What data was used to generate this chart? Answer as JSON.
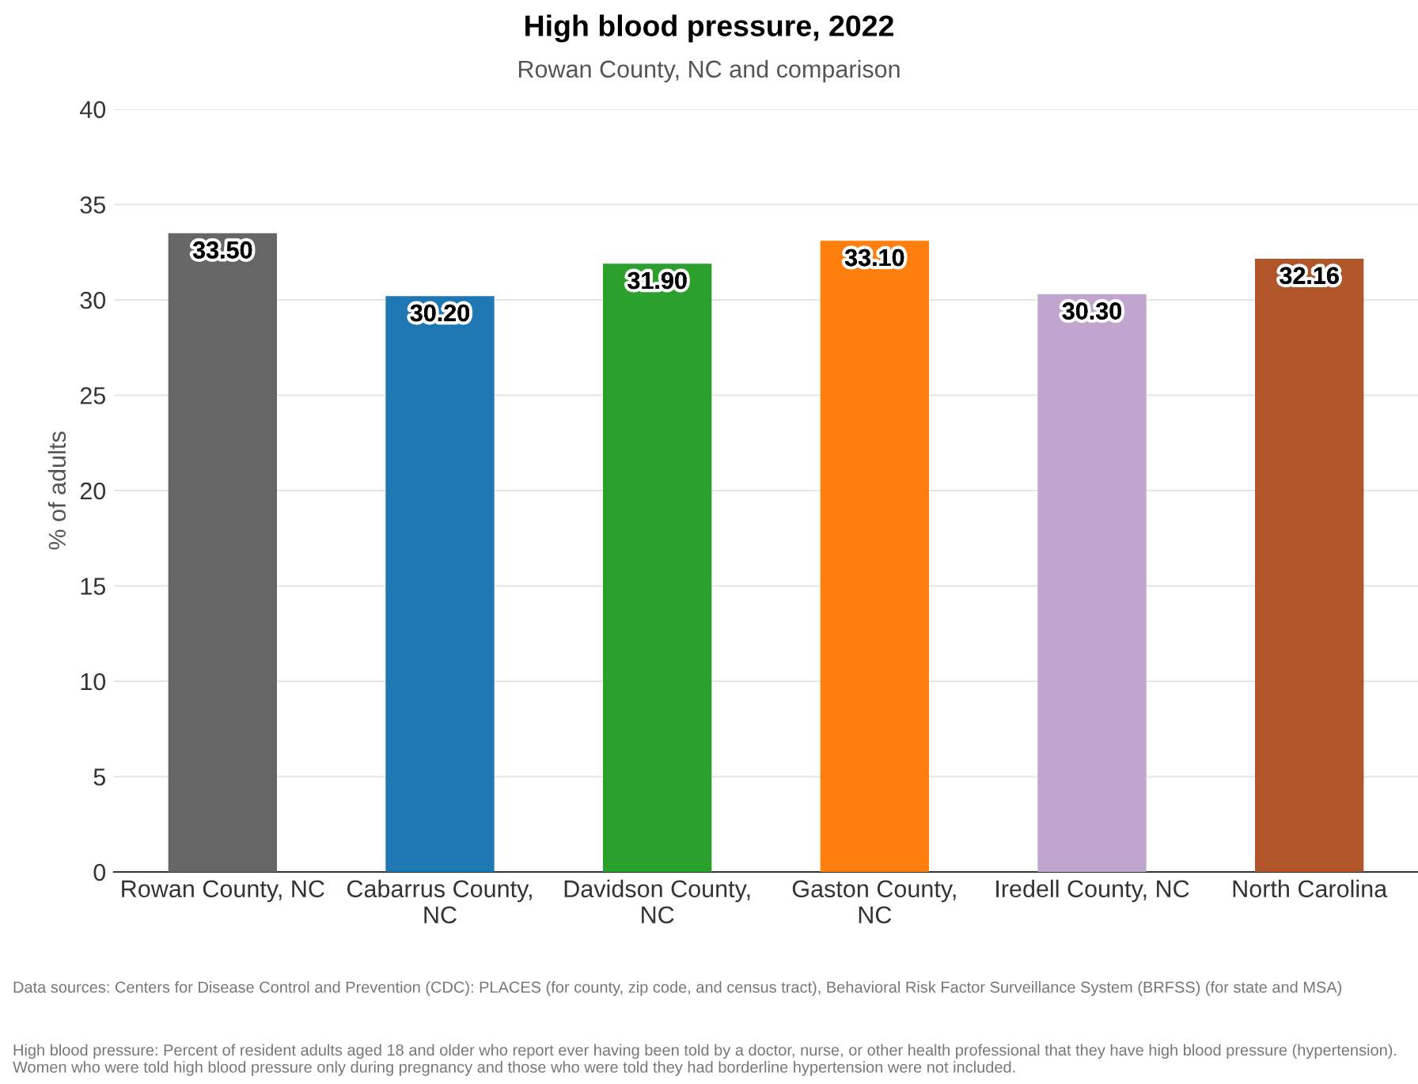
{
  "chart_data": {
    "type": "bar",
    "title": "High blood pressure, 2022",
    "subtitle": "Rowan County, NC and comparison",
    "ylabel": "% of adults",
    "categories": [
      "Rowan County, NC",
      "Cabarrus County,\nNC",
      "Davidson County,\nNC",
      "Gaston County,\nNC",
      "Iredell County, NC",
      "North Carolina"
    ],
    "values": [
      33.5,
      30.2,
      31.9,
      33.1,
      30.3,
      32.16
    ],
    "value_labels": [
      "33.50",
      "30.20",
      "31.90",
      "33.10",
      "30.30",
      "32.16"
    ],
    "colors": [
      "#666666",
      "#1f77b4",
      "#2ca02c",
      "#ff7f0e",
      "#c0a6cf",
      "#b0562a"
    ],
    "ylim": [
      0,
      40
    ],
    "yticks": [
      0,
      5,
      10,
      15,
      20,
      25,
      30,
      35,
      40
    ],
    "grid": "y",
    "annotations": [
      "Data sources: Centers for Disease Control and Prevention (CDC): PLACES (for county, zip code, and census tract), Behavioral Risk Factor Surveillance System (BRFSS) (for state and MSA)",
      "High blood pressure: Percent of resident adults aged 18 and older who report ever having been told by a doctor, nurse, or other health professional that they have high blood pressure (hypertension). Women who were told high blood pressure only during pregnancy and those who were told they had borderline hypertension were not included."
    ]
  }
}
